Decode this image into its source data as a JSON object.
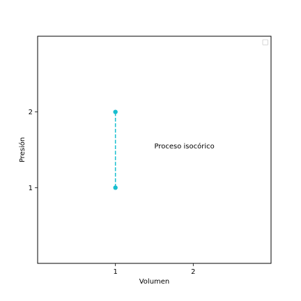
{
  "chart_data": {
    "type": "line",
    "title": "",
    "xlabel": "Volumen",
    "ylabel": "Presión",
    "xlim": [
      0,
      3
    ],
    "ylim": [
      0,
      3
    ],
    "xticks": [
      1,
      2
    ],
    "yticks": [
      1,
      2
    ],
    "xtick_labels": [
      "1",
      "2"
    ],
    "ytick_labels": [
      "1",
      "2"
    ],
    "grid": false,
    "legend": {
      "placement": "top-right",
      "entries": []
    },
    "series": [
      {
        "x": [
          1,
          1
        ],
        "y": [
          1,
          2
        ],
        "color": "#17becf",
        "linestyle": "dashed",
        "marker": "circle"
      }
    ],
    "annotations": [
      {
        "text": "Proceso isocórico",
        "x": 1.5,
        "y": 1.55
      }
    ]
  }
}
